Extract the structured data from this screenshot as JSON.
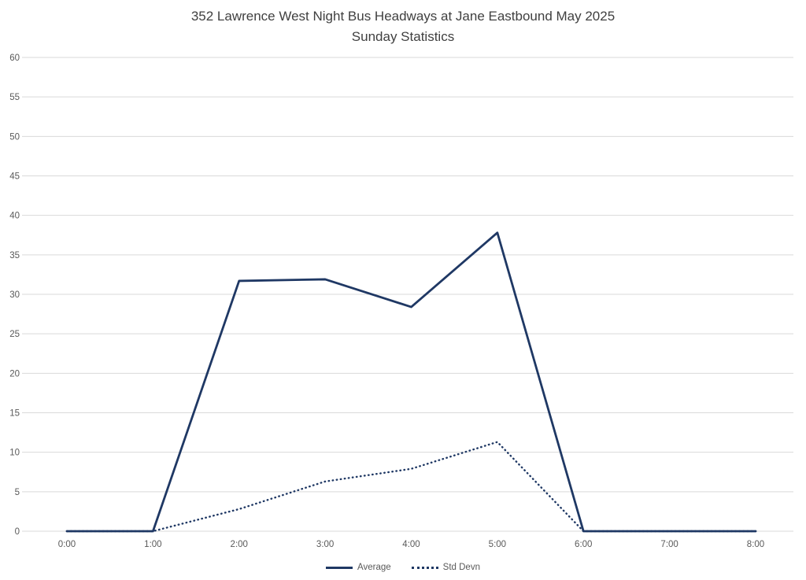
{
  "title": {
    "line1": "352 Lawrence West Night Bus Headways at Jane Eastbound May 2025",
    "line2": "Sunday Statistics"
  },
  "colors": {
    "line": "#1F3864",
    "grid": "#D9D9D9",
    "axis_text": "#595959",
    "title_text": "#404040"
  },
  "legend": {
    "items": [
      {
        "label": "Average",
        "style": "solid"
      },
      {
        "label": "Std Devn",
        "style": "dotted"
      }
    ]
  },
  "chart_data": {
    "type": "line",
    "title": "352 Lawrence West Night Bus Headways at Jane Eastbound May 2025",
    "subtitle": "Sunday Statistics",
    "categories": [
      "0:00",
      "1:00",
      "2:00",
      "3:00",
      "4:00",
      "5:00",
      "6:00",
      "7:00",
      "8:00"
    ],
    "series": [
      {
        "name": "Average",
        "style": "solid",
        "values": [
          0,
          0,
          31.7,
          31.9,
          28.4,
          37.8,
          0,
          0,
          0
        ]
      },
      {
        "name": "Std Devn",
        "style": "dotted",
        "values": [
          0,
          0,
          2.8,
          6.3,
          7.9,
          11.3,
          0,
          0,
          0
        ]
      }
    ],
    "xlabel": "",
    "ylabel": "",
    "ylim": [
      0,
      60
    ],
    "ytick_step": 5,
    "grid": true,
    "legend_position": "bottom"
  }
}
